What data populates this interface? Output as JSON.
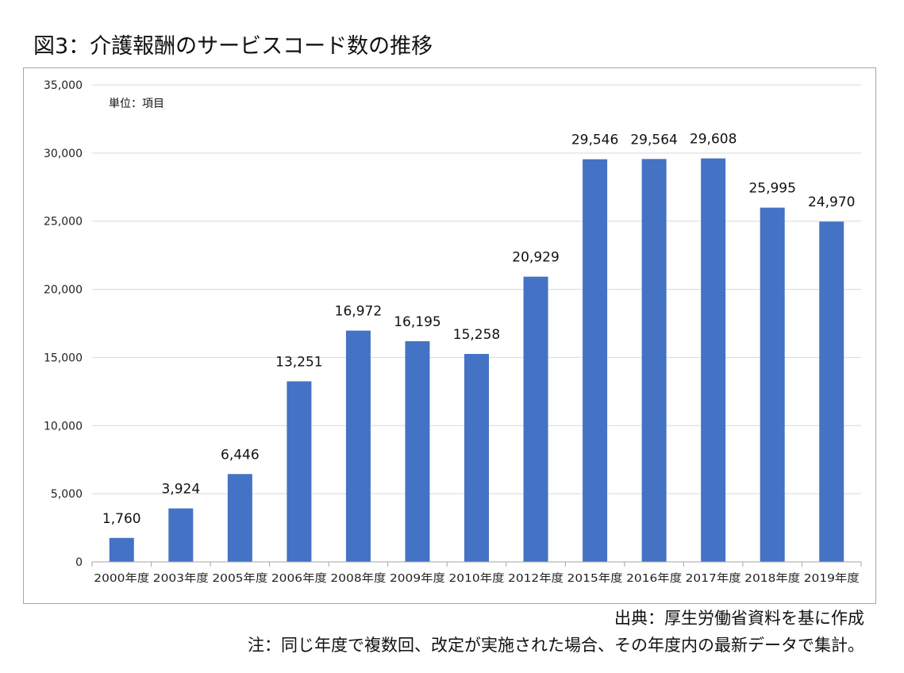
{
  "figure": {
    "title": "図3：介護報酬のサービスコード数の推移",
    "unit_label": "単位：項目",
    "source": "出典：厚生労働省資料を基に作成",
    "note": "注：同じ年度で複数回、改定が実施された場合、その年度内の最新データで集計。"
  },
  "chart_data": {
    "type": "bar",
    "title": "図3：介護報酬のサービスコード数の推移",
    "xlabel": "",
    "ylabel": "",
    "unit": "単位：項目",
    "categories": [
      "2000年度",
      "2003年度",
      "2005年度",
      "2006年度",
      "2008年度",
      "2009年度",
      "2010年度",
      "2012年度",
      "2015年度",
      "2016年度",
      "2017年度",
      "2018年度",
      "2019年度"
    ],
    "values": [
      1760,
      3924,
      6446,
      13251,
      16972,
      16195,
      15258,
      20929,
      29546,
      29564,
      29608,
      25995,
      24970
    ],
    "value_labels": [
      "1,760",
      "3,924",
      "6,446",
      "13,251",
      "16,972",
      "16,195",
      "15,258",
      "20,929",
      "29,546",
      "29,564",
      "29,608",
      "25,995",
      "24,970"
    ],
    "ylim": [
      0,
      35000
    ],
    "yticks": [
      0,
      5000,
      10000,
      15000,
      20000,
      25000,
      30000,
      35000
    ],
    "ytick_labels": [
      "0",
      "5,000",
      "10,000",
      "15,000",
      "20,000",
      "25,000",
      "30,000",
      "35,000"
    ],
    "grid": true,
    "legend": "none",
    "bar_color": "#4472c4",
    "grid_color": "#d9d9d9",
    "axis_color": "#a6a6a6"
  }
}
